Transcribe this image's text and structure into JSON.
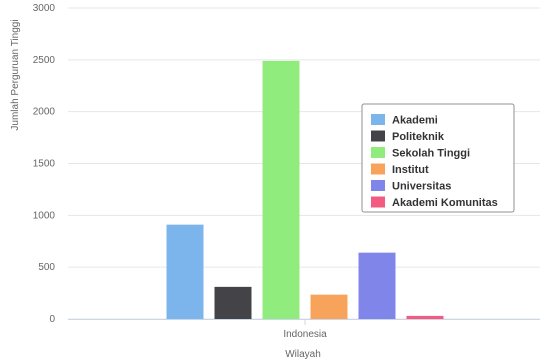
{
  "chart_data": {
    "type": "bar",
    "title": "",
    "xlabel": "Wilayah",
    "ylabel": "Jumlah Perguruan Tinggi",
    "categories": [
      "Indonesia"
    ],
    "ylim": [
      0,
      3000
    ],
    "yticks": [
      0,
      500,
      1000,
      1500,
      2000,
      2500,
      3000
    ],
    "grid": true,
    "legend_position": "right",
    "series": [
      {
        "name": "Akademi",
        "values": [
          910
        ],
        "color": "#7cb5ec"
      },
      {
        "name": "Politeknik",
        "values": [
          310
        ],
        "color": "#434348"
      },
      {
        "name": "Sekolah Tinggi",
        "values": [
          2490
        ],
        "color": "#90ed7d"
      },
      {
        "name": "Institut",
        "values": [
          235
        ],
        "color": "#f7a35c"
      },
      {
        "name": "Universitas",
        "values": [
          640
        ],
        "color": "#8085e9"
      },
      {
        "name": "Akademi Komunitas",
        "values": [
          30
        ],
        "color": "#f15c80"
      }
    ]
  }
}
